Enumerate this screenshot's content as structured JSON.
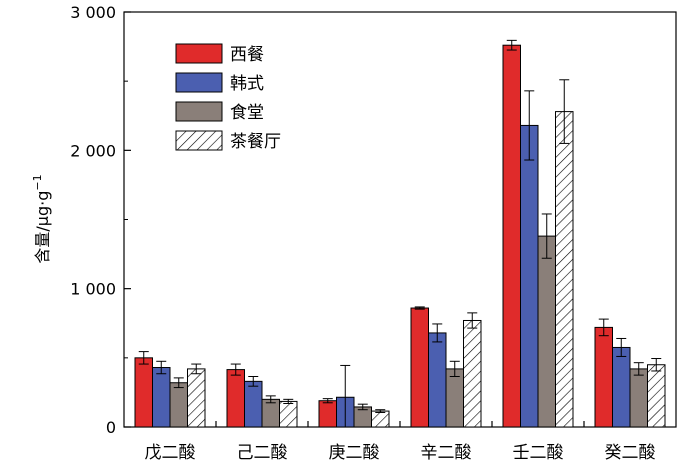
{
  "chart_data": {
    "type": "bar",
    "title": "",
    "xlabel": "",
    "ylabel": "含量/μg·g",
    "ylabel_sup": "−1",
    "ylim": [
      0,
      3000
    ],
    "yticks": [
      0,
      1000,
      2000,
      3000
    ],
    "ytick_labels": [
      "0",
      "1 000",
      "2 000",
      "3 000"
    ],
    "legend_position": "top-left",
    "categories": [
      "戊二酸",
      "己二酸",
      "庚二酸",
      "辛二酸",
      "壬二酸",
      "癸二酸"
    ],
    "series": [
      {
        "name": "西餐",
        "color": "#e02b2b",
        "pattern": "solid",
        "values": [
          500,
          415,
          190,
          860,
          2760,
          720
        ],
        "errors": [
          45,
          40,
          15,
          8,
          35,
          60
        ]
      },
      {
        "name": "韩式",
        "color": "#4b5fb0",
        "pattern": "solid",
        "values": [
          430,
          330,
          215,
          680,
          2180,
          575
        ],
        "errors": [
          45,
          35,
          230,
          65,
          250,
          65
        ]
      },
      {
        "name": "食堂",
        "color": "#8a7f79",
        "pattern": "solid",
        "values": [
          320,
          200,
          145,
          420,
          1380,
          420
        ],
        "errors": [
          35,
          25,
          20,
          55,
          160,
          45
        ]
      },
      {
        "name": "茶餐厅",
        "color": "#ffffff",
        "pattern": "hatch",
        "values": [
          420,
          185,
          115,
          770,
          2280,
          450
        ],
        "errors": [
          35,
          15,
          10,
          55,
          230,
          45
        ]
      }
    ]
  }
}
